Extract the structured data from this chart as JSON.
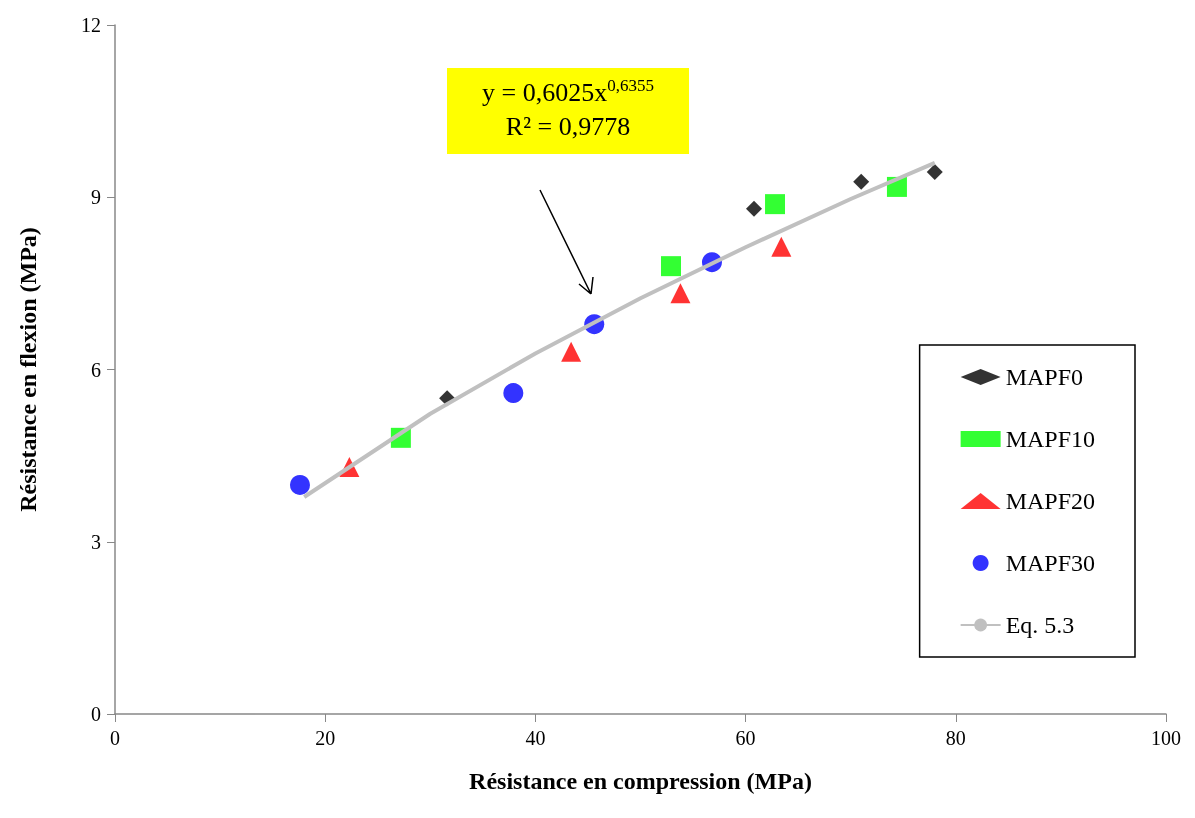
{
  "chart_data": {
    "type": "scatter",
    "xlabel": "Résistance en compression (MPa)",
    "ylabel": "Résistance en flexion (MPa)",
    "annotations": [
      "y = 0,6025x$^{0,6355}$",
      "R² = 0,9778"
    ],
    "xlim": [
      0,
      100
    ],
    "xticks": [
      0,
      20,
      40,
      60,
      80,
      100
    ],
    "ylim": [
      0,
      12
    ],
    "yticks": [
      0,
      3,
      6,
      9,
      12
    ],
    "grid": false,
    "legend": "right",
    "series": [
      {
        "name": "MAPF0",
        "color": "#000000",
        "marker": "diamond",
        "x": [
          31.6,
          60.8,
          71.0,
          78.0
        ],
        "values": [
          5.5,
          8.8,
          9.27,
          9.44
        ]
      },
      {
        "name": "MAPF10",
        "color": "#00ff00",
        "marker": "square",
        "x": [
          27.2,
          52.9,
          62.8,
          74.4
        ],
        "values": [
          4.81,
          7.8,
          8.88,
          9.18
        ]
      },
      {
        "name": "MAPF20",
        "color": "#ff0000",
        "marker": "triangle",
        "x": [
          22.3,
          43.4,
          53.8,
          63.4
        ],
        "values": [
          4.3,
          6.31,
          7.33,
          8.14
        ]
      },
      {
        "name": "MAPF30",
        "color": "#0000ff",
        "marker": "circle",
        "x": [
          17.6,
          37.9,
          45.6,
          56.8
        ],
        "values": [
          3.99,
          5.59,
          6.79,
          7.87
        ]
      },
      {
        "name": "Eq. 5.3",
        "type": "line",
        "color": "#c0c0c0",
        "marker": "none",
        "x": [
          18,
          30,
          40,
          50,
          60,
          70,
          78
        ],
        "values": [
          3.78,
          5.23,
          6.28,
          7.24,
          8.13,
          8.97,
          9.6
        ]
      }
    ]
  }
}
